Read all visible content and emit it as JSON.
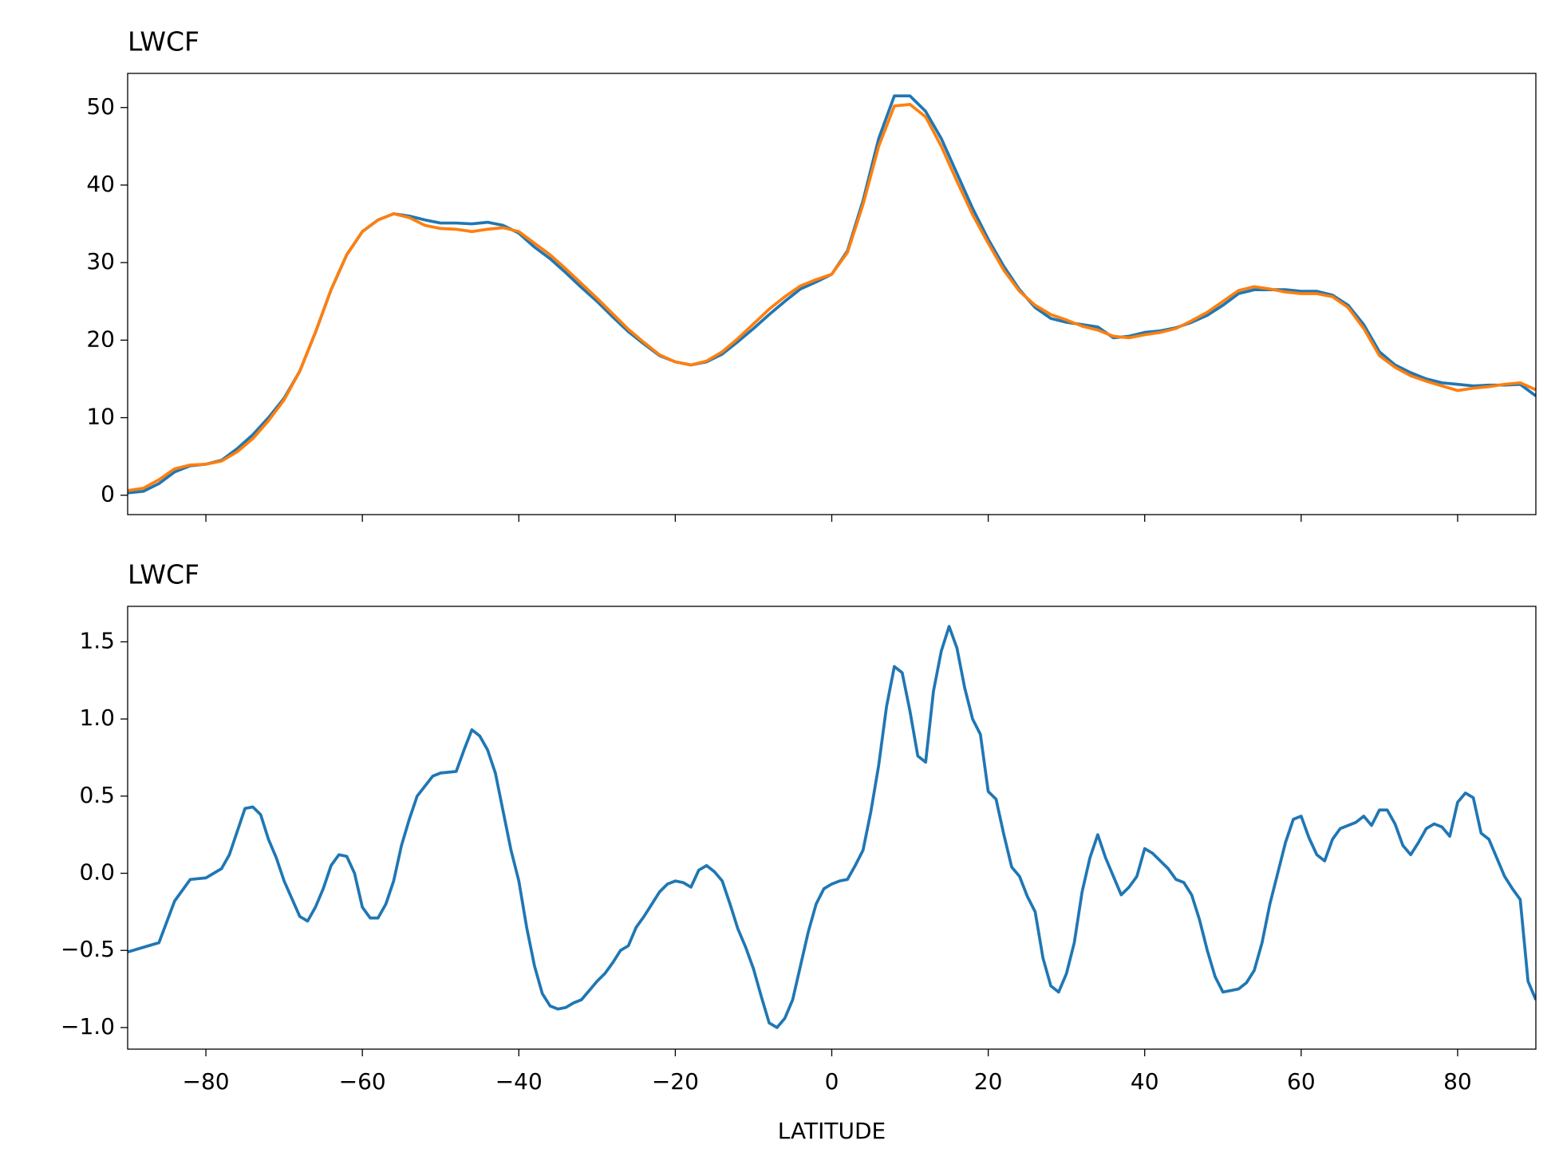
{
  "chart_data": [
    {
      "type": "line",
      "title": "LWCF",
      "x": [
        -90,
        -88,
        -86,
        -84,
        -82,
        -80,
        -78,
        -76,
        -74,
        -72,
        -70,
        -68,
        -66,
        -64,
        -62,
        -60,
        -58,
        -56,
        -54,
        -52,
        -50,
        -48,
        -46,
        -44,
        -42,
        -40,
        -38,
        -36,
        -34,
        -32,
        -30,
        -28,
        -26,
        -24,
        -22,
        -20,
        -18,
        -16,
        -14,
        -12,
        -10,
        -8,
        -6,
        -4,
        -2,
        0,
        2,
        4,
        6,
        8,
        10,
        12,
        14,
        16,
        18,
        20,
        22,
        24,
        26,
        28,
        30,
        32,
        34,
        36,
        38,
        40,
        42,
        44,
        46,
        48,
        50,
        52,
        54,
        56,
        58,
        60,
        62,
        64,
        66,
        68,
        70,
        72,
        74,
        76,
        78,
        80,
        82,
        84,
        86,
        88,
        90
      ],
      "series": [
        {
          "color": "#1f77b4",
          "values": [
            0.3,
            0.5,
            1.5,
            3.0,
            3.8,
            4.0,
            4.5,
            6.0,
            7.8,
            10,
            12.5,
            16,
            21,
            26.5,
            31,
            34,
            35.5,
            36.3,
            36,
            35.5,
            35.1,
            35.1,
            35.0,
            35.2,
            34.8,
            33.8,
            32,
            30.5,
            28.7,
            26.8,
            25,
            23,
            21.1,
            19.5,
            18,
            17.2,
            16.8,
            17.2,
            18.2,
            19.8,
            21.5,
            23.3,
            25.0,
            26.6,
            27.5,
            28.5,
            31.5,
            38,
            46,
            51.5,
            51.5,
            49.5,
            46,
            41.5,
            37,
            33,
            29.5,
            26.5,
            24.2,
            22.8,
            22.3,
            22.0,
            21.7,
            20.3,
            20.5,
            21,
            21.2,
            21.6,
            22.3,
            23.2,
            24.5,
            26,
            26.5,
            26.5,
            26.5,
            26.3,
            26.3,
            25.8,
            24.5,
            22,
            18.5,
            16.8,
            15.8,
            15,
            14.5,
            14.3,
            14.1,
            14.2,
            14.2,
            14.3,
            12.8
          ]
        },
        {
          "color": "#ff7f0e",
          "values": [
            0.6,
            0.9,
            2,
            3.4,
            3.9,
            4.0,
            4.4,
            5.6,
            7.3,
            9.6,
            12.3,
            16,
            21,
            26.5,
            31,
            34,
            35.5,
            36.3,
            35.8,
            34.8,
            34.4,
            34.3,
            34.0,
            34.3,
            34.5,
            34,
            32.5,
            31,
            29.2,
            27.3,
            25.4,
            23.4,
            21.4,
            19.7,
            18.1,
            17.2,
            16.8,
            17.3,
            18.5,
            20.2,
            22.1,
            24,
            25.6,
            27,
            27.8,
            28.5,
            31.3,
            37.5,
            45,
            50.2,
            50.4,
            48.8,
            45,
            40.5,
            36.2,
            32.5,
            29,
            26.3,
            24.5,
            23.3,
            22.6,
            21.8,
            21.3,
            20.5,
            20.3,
            20.7,
            21.0,
            21.5,
            22.5,
            23.6,
            25,
            26.4,
            26.9,
            26.6,
            26.2,
            26.0,
            26.0,
            25.6,
            24.2,
            21.5,
            18,
            16.5,
            15.4,
            14.7,
            14.1,
            13.5,
            13.8,
            14,
            14.3,
            14.5,
            13.6
          ]
        }
      ],
      "xlim": [
        -90,
        90
      ],
      "xticks": [
        -80,
        -60,
        -40,
        -20,
        0,
        20,
        40,
        60,
        80
      ],
      "show_xtick_labels": false,
      "ylim": [
        -2.5,
        54.4
      ],
      "yticks": [
        0,
        10,
        20,
        30,
        40,
        50
      ]
    },
    {
      "type": "line",
      "title": "LWCF",
      "x_label": "LATITUDE",
      "x": [
        -90,
        -86,
        -84,
        -82,
        -80,
        -78,
        -77,
        -76,
        -75,
        -74,
        -73,
        -72,
        -71,
        -70,
        -68,
        -67,
        -66,
        -65,
        -64,
        -63,
        -62,
        -61,
        -60,
        -59,
        -58,
        -57,
        -56,
        -55,
        -54,
        -53,
        -51,
        -50,
        -48,
        -47,
        -46,
        -45,
        -44,
        -43,
        -42,
        -41,
        -40,
        -39,
        -38,
        -37,
        -36,
        -35,
        -34,
        -33,
        -32,
        -31,
        -30,
        -29,
        -28,
        -27,
        -26,
        -25,
        -24,
        -23,
        -22,
        -21,
        -20,
        -19,
        -18,
        -17,
        -16,
        -15,
        -14,
        -13,
        -12,
        -11,
        -10,
        -9,
        -8,
        -7,
        -6,
        -5,
        -4,
        -3,
        -2,
        -1,
        0,
        1,
        2,
        3,
        4,
        5,
        6,
        7,
        8,
        9,
        10,
        11,
        12,
        13,
        14,
        15,
        16,
        17,
        18,
        19,
        20,
        21,
        22,
        23,
        24,
        25,
        26,
        27,
        28,
        29,
        30,
        31,
        32,
        33,
        34,
        35,
        36,
        37,
        38,
        39,
        40,
        41,
        42,
        43,
        44,
        45,
        46,
        47,
        48,
        49,
        50,
        51,
        52,
        53,
        54,
        55,
        56,
        57,
        58,
        59,
        60,
        61,
        62,
        63,
        64,
        65,
        66,
        67,
        68,
        69,
        70,
        71,
        72,
        73,
        74,
        75,
        76,
        77,
        78,
        79,
        80,
        81,
        82,
        83,
        84,
        85,
        86,
        87,
        88,
        89,
        90
      ],
      "series": [
        {
          "color": "#1f77b4",
          "values": [
            -0.51,
            -0.45,
            -0.18,
            -0.04,
            -0.03,
            0.03,
            0.12,
            0.27,
            0.42,
            0.43,
            0.38,
            0.22,
            0.1,
            -0.05,
            -0.28,
            -0.31,
            -0.22,
            -0.1,
            0.05,
            0.12,
            0.11,
            0.0,
            -0.22,
            -0.29,
            -0.29,
            -0.2,
            -0.05,
            0.18,
            0.35,
            0.5,
            0.63,
            0.65,
            0.66,
            0.8,
            0.93,
            0.89,
            0.8,
            0.65,
            0.4,
            0.15,
            -0.05,
            -0.35,
            -0.6,
            -0.78,
            -0.86,
            -0.88,
            -0.87,
            -0.84,
            -0.82,
            -0.76,
            -0.7,
            -0.65,
            -0.58,
            -0.5,
            -0.47,
            -0.35,
            -0.28,
            -0.2,
            -0.12,
            -0.07,
            -0.05,
            -0.06,
            -0.09,
            0.02,
            0.05,
            0.01,
            -0.05,
            -0.2,
            -0.36,
            -0.48,
            -0.62,
            -0.8,
            -0.97,
            -1.0,
            -0.94,
            -0.82,
            -0.6,
            -0.38,
            -0.2,
            -0.1,
            -0.07,
            -0.05,
            -0.04,
            0.05,
            0.15,
            0.4,
            0.7,
            1.08,
            1.34,
            1.3,
            1.05,
            0.76,
            0.72,
            1.18,
            1.44,
            1.6,
            1.46,
            1.2,
            1.0,
            0.9,
            0.53,
            0.48,
            0.25,
            0.04,
            -0.02,
            -0.15,
            -0.25,
            -0.55,
            -0.73,
            -0.77,
            -0.65,
            -0.45,
            -0.12,
            0.1,
            0.25,
            0.1,
            -0.02,
            -0.14,
            -0.09,
            -0.02,
            0.16,
            0.13,
            0.08,
            0.03,
            -0.04,
            -0.06,
            -0.14,
            -0.3,
            -0.5,
            -0.67,
            -0.77,
            -0.76,
            -0.75,
            -0.71,
            -0.63,
            -0.45,
            -0.2,
            0.0,
            0.2,
            0.35,
            0.37,
            0.23,
            0.12,
            0.08,
            0.22,
            0.29,
            0.31,
            0.33,
            0.37,
            0.31,
            0.41,
            0.41,
            0.32,
            0.18,
            0.12,
            0.2,
            0.29,
            0.32,
            0.3,
            0.24,
            0.46,
            0.52,
            0.49,
            0.26,
            0.22,
            0.1,
            -0.02,
            -0.1,
            -0.17,
            -0.7,
            -0.82
          ]
        }
      ],
      "xlim": [
        -90,
        90
      ],
      "xticks": [
        {
          "value": -80,
          "label": "−80"
        },
        {
          "value": -60,
          "label": "−60"
        },
        {
          "value": -40,
          "label": "−40"
        },
        {
          "value": -20,
          "label": "−20"
        },
        0,
        20,
        40,
        60,
        80
      ],
      "ylim": [
        -1.14,
        1.73
      ],
      "yticks": [
        {
          "value": -1.0,
          "label": "−1.0"
        },
        {
          "value": -0.5,
          "label": "−0.5"
        },
        {
          "value": 0.0,
          "label": "0.0"
        },
        0.5,
        {
          "value": 1.0,
          "label": "1.0"
        },
        1.5
      ]
    }
  ]
}
